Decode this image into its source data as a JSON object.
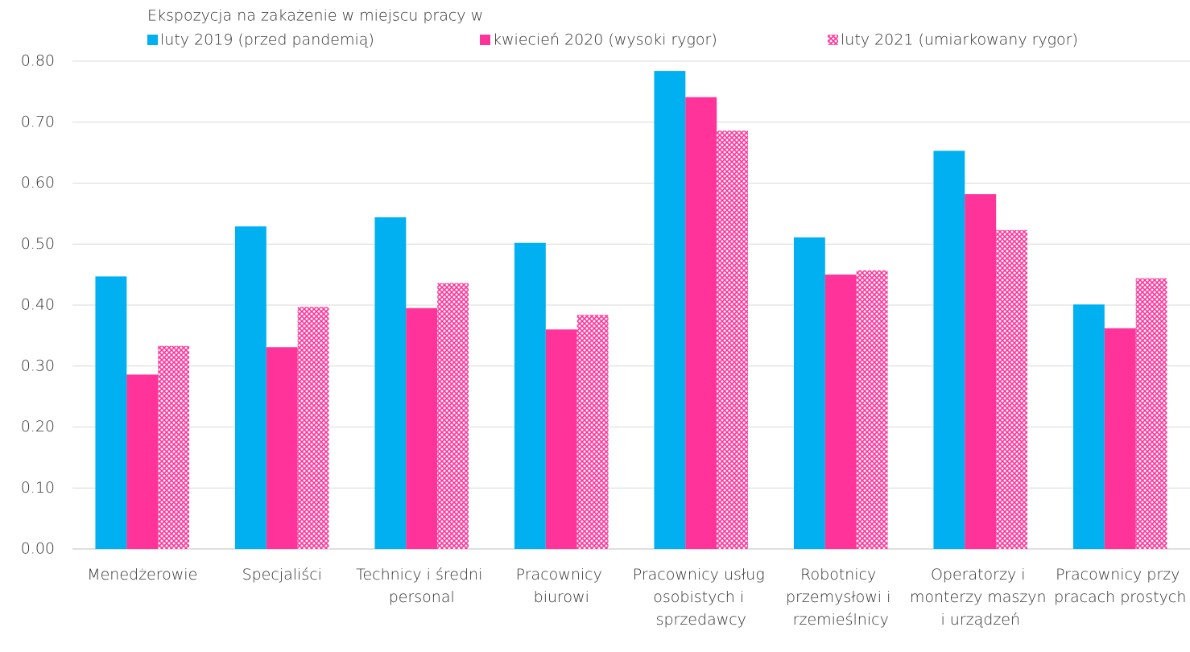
{
  "chart_data": {
    "type": "bar",
    "legend_title": "Ekspozycja na zakażenie w miejscu pracy w",
    "legend": "top-left",
    "grid": true,
    "categories": [
      "Menedżerowie",
      "Specjaliści",
      "Technicy i średni personal",
      "Pracownicy biurowi",
      "Pracownicy usług osobistych i sprzedawcy",
      "Robotnicy przemysłowi i rzemieślnicy",
      "Operatorzy i monterzy maszyn i urządzeń",
      "Pracownicy przy pracach prostych"
    ],
    "series": [
      {
        "name": "luty 2019 (przed pandemią)",
        "color": "#00b0f0",
        "values": [
          0.447,
          0.529,
          0.544,
          0.502,
          0.784,
          0.511,
          0.653,
          0.401
        ]
      },
      {
        "name": "kwiecień 2020 (wysoki rygor)",
        "color": "#ff3399",
        "values": [
          0.286,
          0.331,
          0.395,
          0.36,
          0.741,
          0.45,
          0.582,
          0.362
        ]
      },
      {
        "name": "luty 2021 (umiarkowany rygor)",
        "color": "#ff3399",
        "pattern": "crosshatch",
        "values": [
          0.333,
          0.397,
          0.436,
          0.384,
          0.686,
          0.457,
          0.523,
          0.444
        ]
      }
    ],
    "ylim": [
      0,
      0.8
    ],
    "yticks": [
      {
        "value": 0,
        "label": "0.00"
      },
      {
        "value": 0.1,
        "label": "0.10"
      },
      {
        "value": 0.2,
        "label": "0.20"
      },
      {
        "value": 0.3,
        "label": "0.30"
      },
      {
        "value": 0.4,
        "label": "0.40"
      },
      {
        "value": 0.5,
        "label": "0.50"
      },
      {
        "value": 0.6,
        "label": "0.60"
      },
      {
        "value": 0.7,
        "label": "0.70"
      },
      {
        "value": 0.8,
        "label": "0.80"
      }
    ]
  }
}
